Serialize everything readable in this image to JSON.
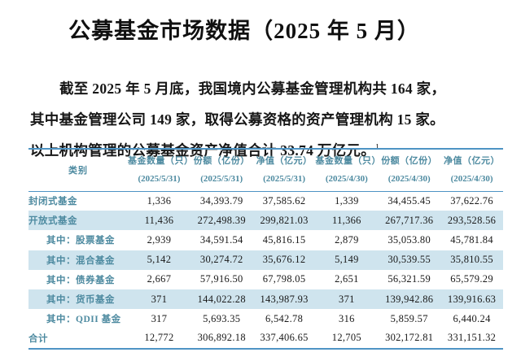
{
  "document": {
    "title": "公募基金市场数据（2025 年 5 月）",
    "paragraph": {
      "line1": "截至 2025 年 5 月底，我国境内公募基金管理机构共 164 家，",
      "line2": "其中基金管理公司 149 家，取得公募资格的资产管理机构 15 家。",
      "line3": "以上机构管理的公募基金资产净值合计 33.74 万亿元。",
      "footnote_marker": "1"
    }
  },
  "table": {
    "category_header": "类别",
    "columns": [
      {
        "label": "基金数量（只）",
        "date": "(2025/5/31)"
      },
      {
        "label": "份额（亿份）",
        "date": "(2025/5/31)"
      },
      {
        "label": "净值（亿元）",
        "date": "(2025/5/31)"
      },
      {
        "label": "基金数量（只）",
        "date": "(2025/4/30)"
      },
      {
        "label": "份额（亿份）",
        "date": "(2025/4/30)"
      },
      {
        "label": "净值（亿元）",
        "date": "(2025/4/30)"
      }
    ],
    "rows": [
      {
        "category": "封闭式基金",
        "values": [
          "1,336",
          "34,393.79",
          "37,585.62",
          "1,339",
          "34,455.45",
          "37,622.76"
        ]
      },
      {
        "category": "开放式基金",
        "values": [
          "11,436",
          "272,498.39",
          "299,821.03",
          "11,366",
          "267,717.36",
          "293,528.56"
        ]
      },
      {
        "category": "其中：股票基金",
        "values": [
          "2,939",
          "34,591.54",
          "45,816.15",
          "2,879",
          "35,053.80",
          "45,781.84"
        ]
      },
      {
        "category": "其中：混合基金",
        "values": [
          "5,142",
          "30,274.72",
          "35,676.12",
          "5,149",
          "30,539.55",
          "35,810.55"
        ]
      },
      {
        "category": "其中：债券基金",
        "values": [
          "2,667",
          "57,916.50",
          "67,798.05",
          "2,651",
          "56,321.59",
          "65,579.29"
        ]
      },
      {
        "category": "其中：货币基金",
        "values": [
          "371",
          "144,022.28",
          "143,987.93",
          "371",
          "139,942.86",
          "139,916.63"
        ]
      },
      {
        "category": "其中：QDII 基金",
        "values": [
          "317",
          "5,693.35",
          "6,542.78",
          "316",
          "5,859.57",
          "6,440.24"
        ]
      },
      {
        "category": "合计",
        "values": [
          "12,772",
          "306,892.18",
          "337,406.65",
          "12,705",
          "302,172.81",
          "331,151.32"
        ]
      }
    ]
  },
  "colors": {
    "accent_teal": "#4d8aa0",
    "row_stripe": "#cfe4ee",
    "rule_blue": "#4e94c4",
    "body_text": "#161616"
  }
}
